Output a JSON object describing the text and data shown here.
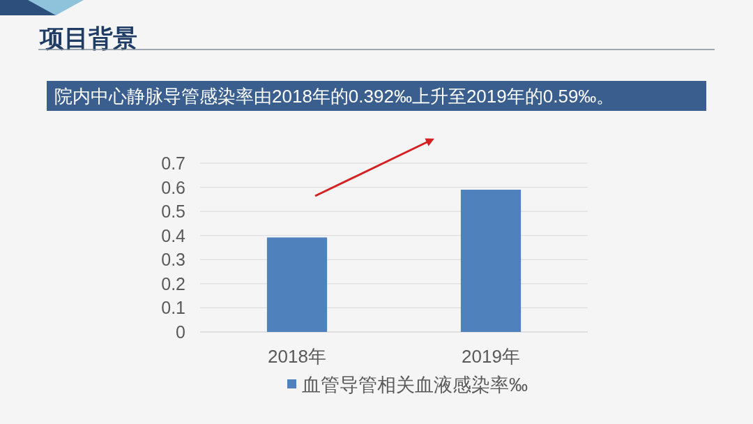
{
  "chart_data": {
    "type": "bar",
    "title": "项目背景",
    "subtitle": "院内中心静脉导管感染率由2018年的0.392‰上升至2019年的0.59‰。",
    "categories": [
      "2018年",
      "2019年"
    ],
    "series": [
      {
        "name": "血管导管相关血液感染率‰",
        "color": "#4f81bd",
        "values": [
          0.392,
          0.59
        ]
      }
    ],
    "ylim": [
      0,
      0.7
    ],
    "yticks": [
      0,
      0.1,
      0.2,
      0.3,
      0.4,
      0.5,
      0.6,
      0.7
    ],
    "grid": "y",
    "legend": "bottom"
  }
}
